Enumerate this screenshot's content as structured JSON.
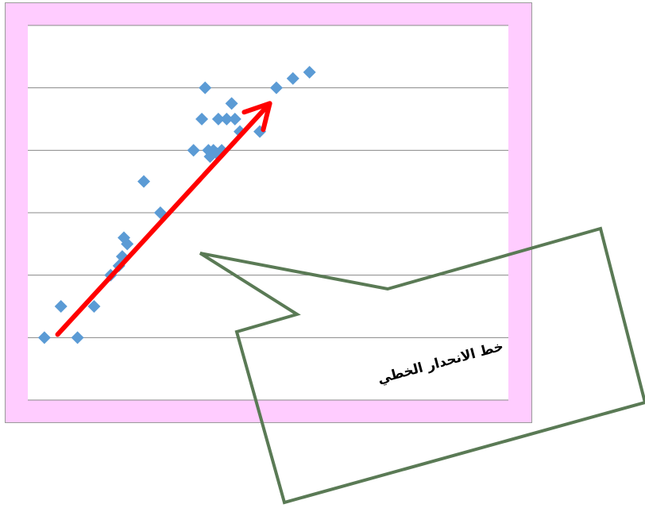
{
  "chart_data": {
    "type": "scatter",
    "title": "",
    "xlabel": "",
    "ylabel": "",
    "xlim": [
      0,
      29
    ],
    "ylim": [
      0,
      6
    ],
    "grid": true,
    "gridlines_y": [
      1,
      2,
      3,
      4,
      5,
      6
    ],
    "series": [
      {
        "marker": "diamond",
        "color": "#5b9bd5",
        "points": [
          {
            "x": 1,
            "y": 1.0
          },
          {
            "x": 2,
            "y": 1.5
          },
          {
            "x": 3,
            "y": 1.0
          },
          {
            "x": 4,
            "y": 1.5
          },
          {
            "x": 5,
            "y": 2.0
          },
          {
            "x": 5.5,
            "y": 2.15
          },
          {
            "x": 5.7,
            "y": 2.3
          },
          {
            "x": 5.8,
            "y": 2.6
          },
          {
            "x": 6.0,
            "y": 2.5
          },
          {
            "x": 7.0,
            "y": 3.5
          },
          {
            "x": 8.0,
            "y": 3.0
          },
          {
            "x": 10.0,
            "y": 4.0
          },
          {
            "x": 10.5,
            "y": 4.5
          },
          {
            "x": 10.7,
            "y": 5.0
          },
          {
            "x": 10.9,
            "y": 4.0
          },
          {
            "x": 11.0,
            "y": 3.9
          },
          {
            "x": 11.2,
            "y": 4.0
          },
          {
            "x": 11.4,
            "y": 3.95
          },
          {
            "x": 11.5,
            "y": 4.5
          },
          {
            "x": 11.7,
            "y": 4.0
          },
          {
            "x": 12.0,
            "y": 4.5
          },
          {
            "x": 12.3,
            "y": 4.75
          },
          {
            "x": 12.5,
            "y": 4.5
          },
          {
            "x": 12.8,
            "y": 4.3
          },
          {
            "x": 14.0,
            "y": 4.3
          },
          {
            "x": 15.0,
            "y": 5.0
          },
          {
            "x": 16.0,
            "y": 5.15
          },
          {
            "x": 17.0,
            "y": 5.25
          }
        ]
      }
    ],
    "regression_arrow": {
      "color": "#ff0000",
      "from": {
        "x": 1.8,
        "y": 1.05
      },
      "to": {
        "x": 14.6,
        "y": 4.75
      }
    },
    "colors": {
      "plot_background": "#ffccff",
      "plot_area": "#ffffff",
      "gridline": "#888888",
      "callout_border": "#5a7a55"
    }
  },
  "callout": {
    "text": "خط الانحدار الخطي"
  }
}
